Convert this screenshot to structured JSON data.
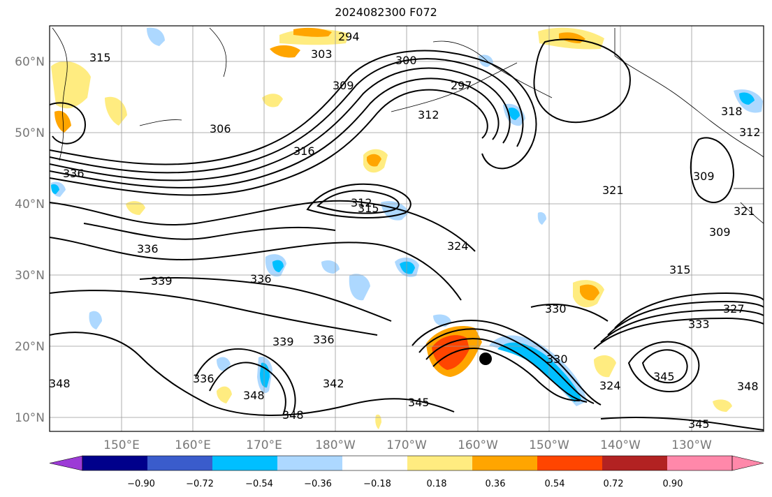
{
  "title": "2024082300 F072",
  "map": {
    "lat_labels": [
      "60°N",
      "50°N",
      "40°N",
      "30°N",
      "20°N",
      "10°N"
    ],
    "lon_labels": [
      "150°E",
      "160°E",
      "170°E",
      "180°W",
      "170°W",
      "160°W",
      "150°W",
      "140°W",
      "130°W"
    ],
    "contour_labels": [
      "294",
      "303",
      "300",
      "309",
      "297",
      "312",
      "315",
      "306",
      "321",
      "336",
      "312",
      "315",
      "336",
      "339",
      "336",
      "324",
      "330",
      "321",
      "309",
      "309",
      "339",
      "336",
      "348",
      "342",
      "348",
      "345",
      "330",
      "324",
      "348",
      "345",
      "333",
      "327",
      "318",
      "312",
      "348",
      "345",
      "315",
      "316",
      "336"
    ],
    "storm_marker": "tropical-cyclone-center"
  },
  "colorbar": {
    "colors": [
      "#9c3bd6",
      "#00008b",
      "#3a5ccc",
      "#00bfff",
      "#add8ff",
      "#ffffff",
      "#ffec80",
      "#ffa500",
      "#ff4500",
      "#b22222",
      "#ff88aa",
      "#ff88aa"
    ],
    "ticks": [
      "−0.90",
      "−0.72",
      "−0.54",
      "−0.36",
      "−0.18",
      "0.18",
      "0.36",
      "0.54",
      "0.72",
      "0.90"
    ]
  }
}
